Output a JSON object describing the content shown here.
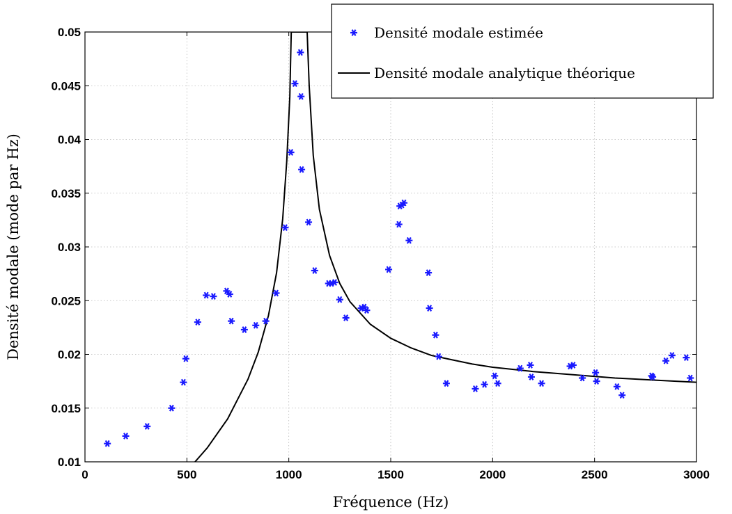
{
  "chart_data": {
    "type": "scatter",
    "xlabel": "Fréquence (Hz)",
    "ylabel": "Densité modale (mode par Hz)",
    "xlim": [
      0,
      3000
    ],
    "ylim": [
      0.01,
      0.05
    ],
    "xticks": [
      "0",
      "500",
      "1000",
      "1500",
      "2000",
      "2500",
      "3000"
    ],
    "yticks": [
      "0.01",
      "0.015",
      "0.02",
      "0.025",
      "0.03",
      "0.035",
      "0.04",
      "0.045",
      "0.05"
    ],
    "grid": true,
    "legend_position": "top-right",
    "series": [
      {
        "name": "Densité modale estimée",
        "marker": "asterisk",
        "color": "#1a1aff",
        "points": [
          [
            110,
            0.0117
          ],
          [
            200,
            0.0124
          ],
          [
            305,
            0.0133
          ],
          [
            425,
            0.015
          ],
          [
            483,
            0.0174
          ],
          [
            495,
            0.0196
          ],
          [
            553,
            0.023
          ],
          [
            595,
            0.0255
          ],
          [
            630,
            0.0254
          ],
          [
            695,
            0.0259
          ],
          [
            710,
            0.0256
          ],
          [
            718,
            0.0231
          ],
          [
            782,
            0.0223
          ],
          [
            838,
            0.0227
          ],
          [
            887,
            0.0231
          ],
          [
            938,
            0.0257
          ],
          [
            982,
            0.0318
          ],
          [
            1010,
            0.0388
          ],
          [
            1030,
            0.0452
          ],
          [
            1057,
            0.0481
          ],
          [
            1060,
            0.044
          ],
          [
            1063,
            0.0372
          ],
          [
            1097,
            0.0323
          ],
          [
            1127,
            0.0278
          ],
          [
            1195,
            0.0266
          ],
          [
            1210,
            0.0266
          ],
          [
            1225,
            0.0267
          ],
          [
            1250,
            0.0251
          ],
          [
            1280,
            0.0234
          ],
          [
            1355,
            0.0243
          ],
          [
            1370,
            0.0244
          ],
          [
            1382,
            0.0241
          ],
          [
            1490,
            0.0279
          ],
          [
            1540,
            0.0321
          ],
          [
            1545,
            0.0338
          ],
          [
            1555,
            0.0339
          ],
          [
            1565,
            0.0341
          ],
          [
            1590,
            0.0306
          ],
          [
            1685,
            0.0276
          ],
          [
            1690,
            0.0243
          ],
          [
            1720,
            0.0218
          ],
          [
            1735,
            0.0198
          ],
          [
            1773,
            0.0173
          ],
          [
            1915,
            0.0168
          ],
          [
            1960,
            0.0172
          ],
          [
            2010,
            0.018
          ],
          [
            2025,
            0.0173
          ],
          [
            2135,
            0.0187
          ],
          [
            2185,
            0.019
          ],
          [
            2190,
            0.0179
          ],
          [
            2240,
            0.0173
          ],
          [
            2380,
            0.0189
          ],
          [
            2395,
            0.019
          ],
          [
            2440,
            0.0178
          ],
          [
            2505,
            0.0183
          ],
          [
            2510,
            0.0175
          ],
          [
            2610,
            0.017
          ],
          [
            2635,
            0.0162
          ],
          [
            2780,
            0.018
          ],
          [
            2785,
            0.0179
          ],
          [
            2850,
            0.0194
          ],
          [
            2880,
            0.0199
          ],
          [
            2950,
            0.0197
          ],
          [
            2970,
            0.0178
          ]
        ]
      },
      {
        "name": "Densité modale analytique théorique",
        "type": "line",
        "color": "#000000",
        "points": [
          [
            540,
            0.01
          ],
          [
            600,
            0.0113
          ],
          [
            700,
            0.014
          ],
          [
            800,
            0.0177
          ],
          [
            850,
            0.0202
          ],
          [
            900,
            0.0236
          ],
          [
            940,
            0.0276
          ],
          [
            970,
            0.0326
          ],
          [
            990,
            0.038
          ],
          [
            1005,
            0.044
          ],
          [
            1012,
            0.05
          ],
          [
            1090,
            0.05
          ],
          [
            1100,
            0.045
          ],
          [
            1120,
            0.0385
          ],
          [
            1150,
            0.0335
          ],
          [
            1200,
            0.0292
          ],
          [
            1250,
            0.0266
          ],
          [
            1300,
            0.0249
          ],
          [
            1400,
            0.0228
          ],
          [
            1500,
            0.0215
          ],
          [
            1600,
            0.0206
          ],
          [
            1700,
            0.0199
          ],
          [
            1800,
            0.0195
          ],
          [
            1900,
            0.0191
          ],
          [
            2000,
            0.0188
          ],
          [
            2200,
            0.0184
          ],
          [
            2400,
            0.0181
          ],
          [
            2600,
            0.0178
          ],
          [
            2800,
            0.0176
          ],
          [
            3000,
            0.0174
          ]
        ]
      }
    ]
  }
}
